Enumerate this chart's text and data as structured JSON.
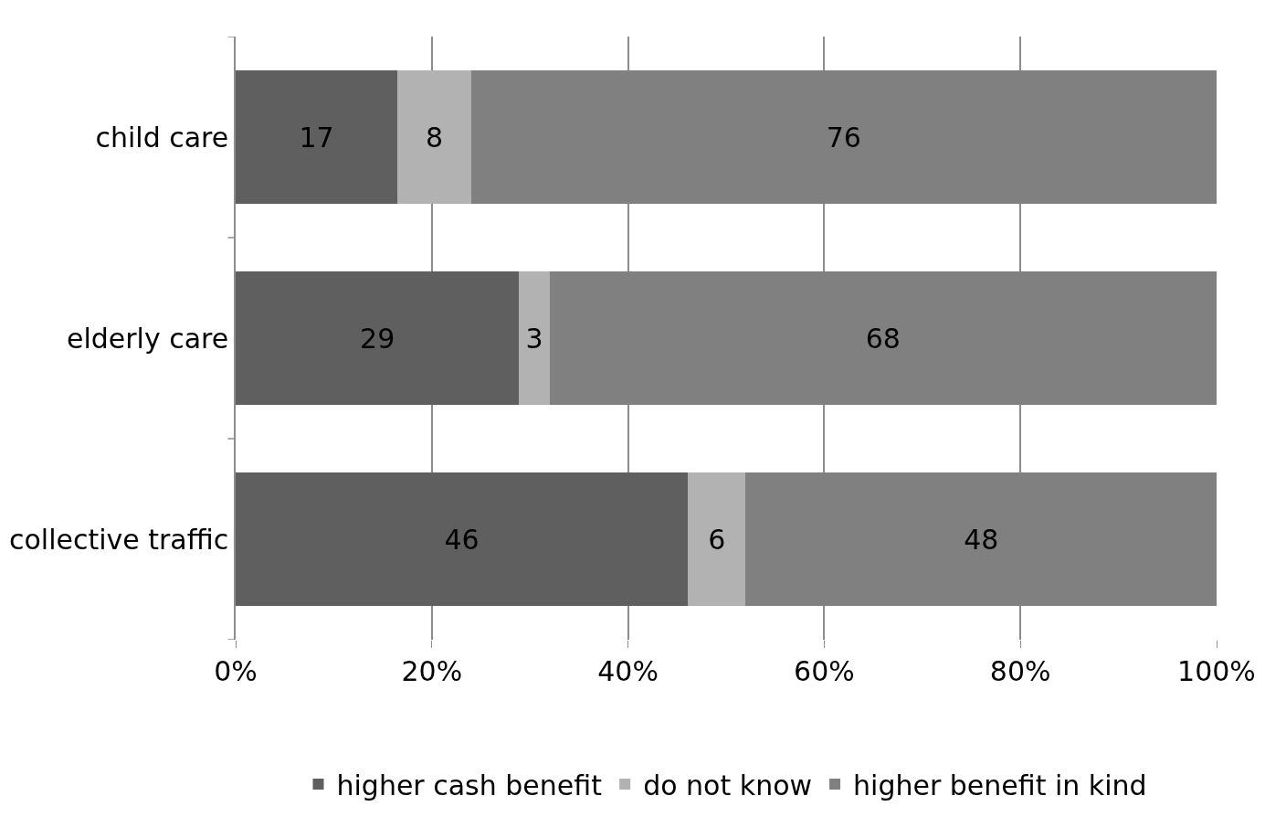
{
  "chart_data": {
    "type": "bar",
    "orientation": "horizontal",
    "stacked": true,
    "categories": [
      "child care",
      "elderly care",
      "collective traffic"
    ],
    "series": [
      {
        "name": "higher cash benefit",
        "color": "#5f5f5f",
        "values": [
          16.5,
          28.9,
          46.1
        ],
        "value_labels": [
          "17",
          "29",
          "46"
        ]
      },
      {
        "name": "do not know",
        "color": "#b2b2b2",
        "values": [
          7.5,
          3.1,
          5.9
        ],
        "value_labels": [
          "8",
          "3",
          "6"
        ]
      },
      {
        "name": "higher benefit in kind",
        "color": "#808080",
        "values": [
          76.0,
          68.0,
          48.0
        ],
        "value_labels": [
          "76",
          "68",
          "48"
        ]
      }
    ],
    "xlim": [
      0,
      100
    ],
    "xticks": [
      {
        "value": 0,
        "label": "0%"
      },
      {
        "value": 20,
        "label": "20%"
      },
      {
        "value": 40,
        "label": "40%"
      },
      {
        "value": 60,
        "label": "60%"
      },
      {
        "value": 80,
        "label": "80%"
      },
      {
        "value": 100,
        "label": "100%"
      }
    ],
    "grid": "x",
    "legend": "bottom"
  }
}
